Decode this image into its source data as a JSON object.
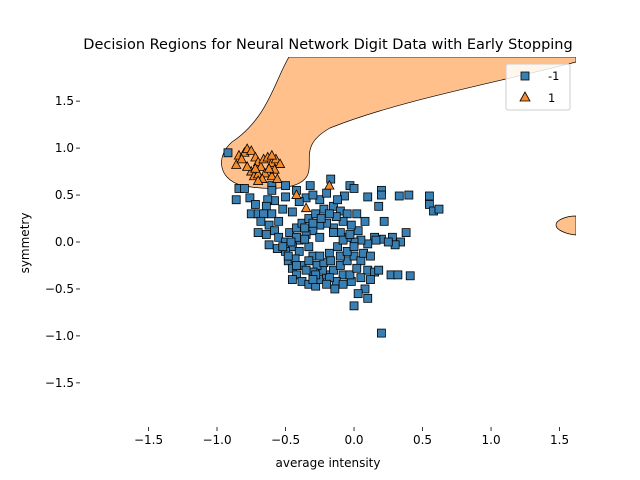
{
  "chart_data": {
    "type": "scatter",
    "title": "Decision Regions for Neural Network Digit Data with Early Stopping",
    "xlabel": "average intensity",
    "ylabel": "symmetry",
    "xlim": [
      -2.0,
      1.62
    ],
    "ylim": [
      -1.97,
      1.97
    ],
    "x_ticks": [
      -1.5,
      -1.0,
      -0.5,
      0.0,
      0.5,
      1.0,
      1.5
    ],
    "x_tick_labels": [
      "−1.5",
      "−1.0",
      "−0.5",
      "0.0",
      "0.5",
      "1.0",
      "1.5"
    ],
    "y_ticks": [
      -1.5,
      -1.0,
      -0.5,
      0.0,
      0.5,
      1.0,
      1.5
    ],
    "y_tick_labels": [
      "−1.5",
      "−1.0",
      "−0.5",
      "0.0",
      "0.5",
      "1.0",
      "1.5"
    ],
    "grid": false,
    "legend_position": "top-right",
    "region_color": "#ffc08c",
    "series": [
      {
        "name": "-1",
        "marker": "square",
        "color": "#3a7fb2",
        "points": [
          [
            -0.92,
            0.95
          ],
          [
            -0.84,
            0.57
          ],
          [
            -0.8,
            0.57
          ],
          [
            -0.86,
            0.45
          ],
          [
            -0.76,
            0.47
          ],
          [
            -0.72,
            0.4
          ],
          [
            -0.75,
            0.3
          ],
          [
            -0.7,
            0.3
          ],
          [
            -0.6,
            0.6
          ],
          [
            -0.5,
            0.6
          ],
          [
            -0.32,
            0.6
          ],
          [
            -0.17,
            0.67
          ],
          [
            -0.03,
            0.6
          ],
          [
            0.0,
            0.57
          ],
          [
            0.2,
            0.55
          ],
          [
            0.2,
            0.5
          ],
          [
            0.33,
            0.49
          ],
          [
            0.4,
            0.5
          ],
          [
            0.55,
            0.49
          ],
          [
            0.55,
            0.4
          ],
          [
            0.58,
            0.33
          ],
          [
            0.62,
            0.35
          ],
          [
            0.18,
            0.38
          ],
          [
            0.1,
            0.48
          ],
          [
            -0.07,
            0.49
          ],
          [
            -0.25,
            0.45
          ],
          [
            -0.35,
            0.47
          ],
          [
            -0.4,
            0.43
          ],
          [
            -0.45,
            0.32
          ],
          [
            -0.52,
            0.35
          ],
          [
            -0.58,
            0.44
          ],
          [
            -0.63,
            0.45
          ],
          [
            -0.64,
            0.38
          ],
          [
            -0.66,
            0.3
          ],
          [
            -0.6,
            0.3
          ],
          [
            -0.55,
            0.22
          ],
          [
            -0.62,
            0.18
          ],
          [
            -0.68,
            0.22
          ],
          [
            -0.7,
            0.1
          ],
          [
            -0.64,
            0.08
          ],
          [
            -0.58,
            0.12
          ],
          [
            -0.55,
            0.05
          ],
          [
            -0.62,
            -0.03
          ],
          [
            -0.56,
            -0.07
          ],
          [
            -0.5,
            0.0
          ],
          [
            -0.47,
            0.1
          ],
          [
            -0.42,
            0.15
          ],
          [
            -0.38,
            0.2
          ],
          [
            -0.33,
            0.25
          ],
          [
            -0.28,
            0.3
          ],
          [
            -0.22,
            0.35
          ],
          [
            -0.15,
            0.38
          ],
          [
            -0.1,
            0.33
          ],
          [
            -0.05,
            0.3
          ],
          [
            0.02,
            0.3
          ],
          [
            0.08,
            0.22
          ],
          [
            0.22,
            0.22
          ],
          [
            0.28,
            0.05
          ],
          [
            0.34,
            0.0
          ],
          [
            0.38,
            0.1
          ],
          [
            0.3,
            -0.03
          ],
          [
            0.2,
            0.03
          ],
          [
            0.15,
            0.05
          ],
          [
            0.1,
            -0.02
          ],
          [
            0.05,
            0.02
          ],
          [
            0.0,
            0.0
          ],
          [
            -0.05,
            0.05
          ],
          [
            -0.1,
            0.1
          ],
          [
            -0.15,
            0.15
          ],
          [
            -0.2,
            0.2
          ],
          [
            -0.25,
            0.18
          ],
          [
            -0.3,
            0.12
          ],
          [
            -0.35,
            0.08
          ],
          [
            -0.4,
            0.02
          ],
          [
            -0.45,
            -0.05
          ],
          [
            -0.5,
            -0.1
          ],
          [
            -0.48,
            -0.2
          ],
          [
            -0.45,
            -0.28
          ],
          [
            -0.42,
            -0.35
          ],
          [
            -0.38,
            -0.42
          ],
          [
            -0.33,
            -0.45
          ],
          [
            -0.28,
            -0.47
          ],
          [
            -0.25,
            -0.4
          ],
          [
            -0.2,
            -0.35
          ],
          [
            -0.15,
            -0.3
          ],
          [
            -0.1,
            -0.25
          ],
          [
            -0.05,
            -0.2
          ],
          [
            0.0,
            -0.15
          ],
          [
            0.05,
            -0.2
          ],
          [
            0.1,
            -0.3
          ],
          [
            0.15,
            -0.32
          ],
          [
            0.12,
            -0.4
          ],
          [
            0.08,
            -0.5
          ],
          [
            0.03,
            -0.55
          ],
          [
            0.0,
            -0.68
          ],
          [
            0.1,
            -0.6
          ],
          [
            0.2,
            -0.97
          ],
          [
            0.27,
            -0.35
          ],
          [
            0.32,
            -0.35
          ],
          [
            0.41,
            -0.36
          ],
          [
            0.18,
            -0.3
          ],
          [
            0.05,
            -0.38
          ],
          [
            -0.02,
            -0.42
          ],
          [
            -0.08,
            -0.35
          ],
          [
            -0.13,
            -0.42
          ],
          [
            -0.18,
            -0.38
          ],
          [
            -0.23,
            -0.3
          ],
          [
            -0.27,
            -0.25
          ],
          [
            -0.3,
            -0.15
          ],
          [
            -0.33,
            -0.05
          ],
          [
            -0.36,
            0.03
          ],
          [
            -0.4,
            -0.1
          ],
          [
            -0.43,
            -0.18
          ],
          [
            -0.38,
            -0.25
          ],
          [
            -0.3,
            -0.32
          ],
          [
            -0.22,
            -0.22
          ],
          [
            -0.18,
            -0.12
          ],
          [
            -0.12,
            -0.05
          ],
          [
            -0.08,
            0.02
          ],
          [
            -0.03,
            0.08
          ],
          [
            0.03,
            0.12
          ],
          [
            -0.02,
            0.18
          ],
          [
            -0.08,
            0.22
          ],
          [
            -0.13,
            0.27
          ],
          [
            -0.18,
            0.3
          ],
          [
            -0.24,
            0.25
          ],
          [
            -0.3,
            0.2
          ],
          [
            -0.36,
            0.15
          ],
          [
            -0.42,
            0.05
          ],
          [
            -0.46,
            0.0
          ],
          [
            -0.52,
            -0.05
          ],
          [
            -0.48,
            -0.15
          ],
          [
            -0.42,
            -0.25
          ],
          [
            -0.35,
            -0.3
          ],
          [
            -0.28,
            -0.35
          ],
          [
            -0.2,
            -0.45
          ],
          [
            -0.14,
            -0.5
          ],
          [
            -0.08,
            -0.45
          ],
          [
            -0.03,
            -0.35
          ],
          [
            0.02,
            -0.28
          ],
          [
            0.07,
            -0.12
          ],
          [
            0.12,
            -0.15
          ],
          [
            0.16,
            0.02
          ],
          [
            0.25,
            0.0
          ],
          [
            -0.6,
            0.55
          ],
          [
            -0.5,
            0.48
          ],
          [
            -0.42,
            0.55
          ],
          [
            -0.3,
            0.5
          ],
          [
            -0.2,
            0.52
          ],
          [
            -0.12,
            0.45
          ],
          [
            -0.15,
            0.1
          ],
          [
            -0.25,
            0.05
          ],
          [
            -0.33,
            -0.2
          ],
          [
            -0.25,
            -0.15
          ],
          [
            -0.17,
            -0.2
          ],
          [
            -0.1,
            -0.15
          ],
          [
            -0.05,
            -0.1
          ],
          [
            0.0,
            -0.05
          ],
          [
            -0.45,
            -0.4
          ],
          [
            -0.3,
            -0.4
          ]
        ]
      },
      {
        "name": "1",
        "marker": "triangle",
        "color": "#f58a2a",
        "points": [
          [
            -0.86,
            0.82
          ],
          [
            -0.84,
            0.92
          ],
          [
            -0.8,
            0.95
          ],
          [
            -0.78,
            0.99
          ],
          [
            -0.75,
            0.97
          ],
          [
            -0.72,
            0.9
          ],
          [
            -0.7,
            0.85
          ],
          [
            -0.68,
            0.8
          ],
          [
            -0.66,
            0.88
          ],
          [
            -0.63,
            0.9
          ],
          [
            -0.6,
            0.84
          ],
          [
            -0.57,
            0.88
          ],
          [
            -0.54,
            0.83
          ],
          [
            -0.75,
            0.75
          ],
          [
            -0.73,
            0.7
          ],
          [
            -0.7,
            0.72
          ],
          [
            -0.65,
            0.73
          ],
          [
            -0.6,
            0.7
          ],
          [
            -0.58,
            0.77
          ],
          [
            -0.62,
            0.78
          ],
          [
            -0.78,
            0.8
          ],
          [
            -0.82,
            0.88
          ],
          [
            -0.72,
            0.78
          ],
          [
            -0.67,
            0.67
          ],
          [
            -0.6,
            0.92
          ],
          [
            -0.56,
            0.67
          ],
          [
            -0.7,
            0.65
          ],
          [
            -0.42,
            0.5
          ],
          [
            -0.35,
            0.36
          ],
          [
            -0.18,
            0.6
          ]
        ]
      }
    ]
  }
}
